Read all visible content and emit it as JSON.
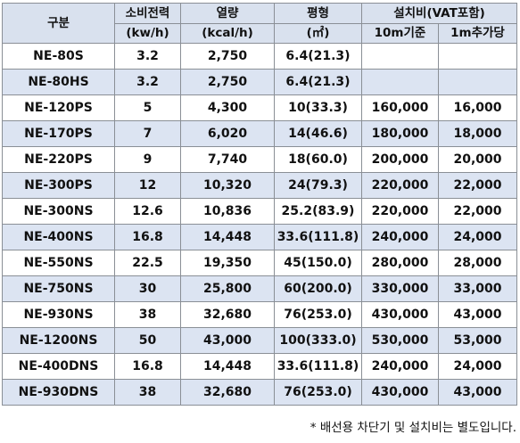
{
  "table": {
    "headers": {
      "category": "구분",
      "power": "소비전력",
      "power_unit": "(kw/h)",
      "heat": "열량",
      "heat_unit": "(kcal/h)",
      "area": "평형",
      "area_unit": "(㎡)",
      "install": "설치비(VAT포함)",
      "install_base": "10m기준",
      "install_extra": "1m추가당"
    },
    "rows": [
      {
        "model": "NE-80S",
        "power": "3.2",
        "heat": "2,750",
        "area": "6.4(21.3)",
        "base": "",
        "extra": ""
      },
      {
        "model": "NE-80HS",
        "power": "3.2",
        "heat": "2,750",
        "area": "6.4(21.3)",
        "base": "",
        "extra": ""
      },
      {
        "model": "NE-120PS",
        "power": "5",
        "heat": "4,300",
        "area": "10(33.3)",
        "base": "160,000",
        "extra": "16,000"
      },
      {
        "model": "NE-170PS",
        "power": "7",
        "heat": "6,020",
        "area": "14(46.6)",
        "base": "180,000",
        "extra": "18,000"
      },
      {
        "model": "NE-220PS",
        "power": "9",
        "heat": "7,740",
        "area": "18(60.0)",
        "base": "200,000",
        "extra": "20,000"
      },
      {
        "model": "NE-300PS",
        "power": "12",
        "heat": "10,320",
        "area": "24(79.3)",
        "base": "220,000",
        "extra": "22,000"
      },
      {
        "model": "NE-300NS",
        "power": "12.6",
        "heat": "10,836",
        "area": "25.2(83.9)",
        "base": "220,000",
        "extra": "22,000"
      },
      {
        "model": "NE-400NS",
        "power": "16.8",
        "heat": "14,448",
        "area": "33.6(111.8)",
        "base": "240,000",
        "extra": "24,000"
      },
      {
        "model": "NE-550NS",
        "power": "22.5",
        "heat": "19,350",
        "area": "45(150.0)",
        "base": "280,000",
        "extra": "28,000"
      },
      {
        "model": "NE-750NS",
        "power": "30",
        "heat": "25,800",
        "area": "60(200.0)",
        "base": "330,000",
        "extra": "33,000"
      },
      {
        "model": "NE-930NS",
        "power": "38",
        "heat": "32,680",
        "area": "76(253.0)",
        "base": "430,000",
        "extra": "43,000"
      },
      {
        "model": "NE-1200NS",
        "power": "50",
        "heat": "43,000",
        "area": "100(333.0)",
        "base": "530,000",
        "extra": "53,000"
      },
      {
        "model": "NE-400DNS",
        "power": "16.8",
        "heat": "14,448",
        "area": "33.6(111.8)",
        "base": "240,000",
        "extra": "24,000"
      },
      {
        "model": "NE-930DNS",
        "power": "38",
        "heat": "32,680",
        "area": "76(253.0)",
        "base": "430,000",
        "extra": "43,000"
      }
    ]
  },
  "footnote": "* 배선용 차단기 및 설치비는 별도입니다."
}
